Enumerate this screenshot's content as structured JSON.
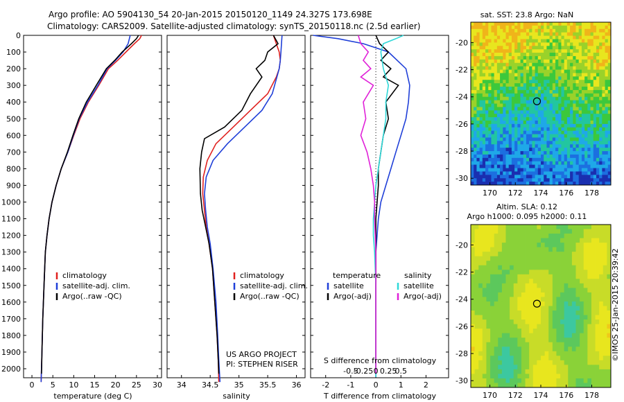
{
  "header": {
    "line1": "Argo profile: AO 5904130_54 20-Jan-2015 20150120_1149 24.327S 173.698E",
    "line2": "Climatology: CARS2009. Satellite-adjusted climatology: synTS_20150118.nc (2.5d earlier)"
  },
  "colors": {
    "climatology": "#e0201e",
    "satellite": "#1f3fd8",
    "argo": "#000000",
    "temp_diff_satellite": "#1f3fd8",
    "temp_diff_argo": "#000000",
    "sal_diff_satellite": "#2fd8d8",
    "sal_diff_argo": "#e020d8"
  },
  "chart_data": [
    {
      "type": "line",
      "name": "temperature-profile",
      "xlabel": "temperature (deg C)",
      "xlim": [
        -2,
        31
      ],
      "ylim": [
        2080,
        0
      ],
      "xticks": [
        0,
        5,
        10,
        15,
        20,
        25,
        30
      ],
      "yticks": [
        0,
        100,
        200,
        300,
        400,
        500,
        600,
        700,
        800,
        900,
        1000,
        1100,
        1200,
        1300,
        1400,
        1500,
        1600,
        1700,
        1800,
        1900,
        2000
      ],
      "legend": [
        "climatology",
        "satellite-adj. clim.",
        "Argo(..raw -QC)"
      ],
      "series": [
        {
          "name": "climatology",
          "color": "#e0201e",
          "x": [
            26.2,
            25.8,
            24.5,
            22.5,
            20.5,
            18.3,
            16.0,
            13.5,
            11.5,
            10.0,
            8.6,
            7.0,
            5.8,
            4.8,
            4.1,
            3.6,
            3.2,
            2.9,
            2.6,
            2.4,
            2.2
          ],
          "y": [
            0,
            20,
            50,
            100,
            150,
            200,
            300,
            400,
            500,
            600,
            700,
            800,
            900,
            1000,
            1100,
            1200,
            1300,
            1500,
            1700,
            1900,
            2080
          ]
        },
        {
          "name": "satellite-adj. clim.",
          "color": "#1f3fd8",
          "x": [
            23.5,
            23.3,
            23.0,
            21.8,
            20.0,
            18.0,
            15.8,
            13.3,
            11.3,
            9.9,
            8.6,
            7.0,
            5.8,
            4.8,
            4.1,
            3.6,
            3.2,
            2.9,
            2.6,
            2.4,
            2.2
          ],
          "y": [
            0,
            20,
            50,
            100,
            150,
            200,
            300,
            400,
            500,
            600,
            700,
            800,
            900,
            1000,
            1100,
            1200,
            1300,
            1500,
            1700,
            1900,
            2080
          ]
        },
        {
          "name": "Argo(..raw -QC)",
          "color": "#000000",
          "x": [
            25.5,
            25.0,
            23.8,
            21.6,
            19.8,
            17.8,
            15.4,
            13.0,
            11.2,
            9.8,
            8.5,
            7.0,
            5.8,
            4.8,
            4.1,
            3.6,
            3.2,
            2.9,
            2.6,
            2.4,
            2.3
          ],
          "y": [
            0,
            20,
            50,
            100,
            150,
            200,
            300,
            400,
            500,
            600,
            700,
            800,
            900,
            1000,
            1100,
            1200,
            1300,
            1500,
            1700,
            1900,
            2030
          ]
        }
      ]
    },
    {
      "type": "line",
      "name": "salinity-profile",
      "xlabel": "salinity",
      "xlim": [
        33.75,
        36.15
      ],
      "ylim": [
        2080,
        0
      ],
      "xticks": [
        34,
        34.5,
        35,
        35.5,
        36
      ],
      "legend": [
        "climatology",
        "satellite-adj. clim.",
        "Argo(..raw -QC)"
      ],
      "annotations": [
        "US ARGO PROJECT",
        "PI: STEPHEN RISER"
      ],
      "series": [
        {
          "name": "climatology",
          "color": "#e0201e",
          "x": [
            35.6,
            35.65,
            35.7,
            35.72,
            35.7,
            35.65,
            35.5,
            35.2,
            34.9,
            34.6,
            34.45,
            34.38,
            34.37,
            34.4,
            34.43,
            34.48,
            34.54,
            34.58,
            34.62,
            34.64,
            34.65
          ],
          "y": [
            0,
            50,
            100,
            150,
            200,
            250,
            350,
            450,
            550,
            650,
            750,
            850,
            950,
            1050,
            1150,
            1250,
            1400,
            1600,
            1800,
            1950,
            2080
          ]
        },
        {
          "name": "satellite-adj. clim.",
          "color": "#1f3fd8",
          "x": [
            35.75,
            35.74,
            35.73,
            35.72,
            35.7,
            35.66,
            35.58,
            35.4,
            35.1,
            34.8,
            34.55,
            34.43,
            34.4,
            34.42,
            34.45,
            34.5,
            34.55,
            34.6,
            34.63,
            34.65,
            34.67
          ],
          "y": [
            0,
            50,
            100,
            150,
            200,
            250,
            350,
            450,
            550,
            650,
            750,
            850,
            950,
            1050,
            1150,
            1250,
            1400,
            1600,
            1800,
            1950,
            2080
          ]
        },
        {
          "name": "Argo(..raw -QC)",
          "color": "#000000",
          "x": [
            35.6,
            35.68,
            35.5,
            35.45,
            35.3,
            35.4,
            35.2,
            35.05,
            34.75,
            34.4,
            34.35,
            34.32,
            34.33,
            34.36,
            34.42,
            34.48,
            34.54,
            34.58,
            34.62,
            34.64,
            34.65
          ],
          "y": [
            0,
            50,
            100,
            150,
            200,
            250,
            350,
            450,
            550,
            620,
            700,
            800,
            950,
            1050,
            1150,
            1250,
            1400,
            1600,
            1800,
            1950,
            2030
          ]
        }
      ]
    },
    {
      "type": "line",
      "name": "difference-profile",
      "xlabel": "T difference from climatology",
      "xlabel_top": "S difference from climatology",
      "xlim": [
        -2.6,
        2.9
      ],
      "ylim": [
        2080,
        0
      ],
      "xticks": [
        -2,
        -1,
        0,
        1,
        2
      ],
      "xticks_top_labels": [
        "-0.5",
        "-0.25",
        "0",
        "0.25",
        "0.5"
      ],
      "legend": {
        "temperature": {
          "heading": "temperature",
          "entries": [
            "satellite",
            "Argo(-adj)"
          ]
        },
        "salinity": {
          "heading": "salinity",
          "entries": [
            "satellite",
            "Argo(-adj)"
          ]
        }
      },
      "series": [
        {
          "name": "temperature satellite",
          "color": "#1f3fd8",
          "x": [
            -2.5,
            -1.5,
            -0.5,
            0.5,
            1.2,
            1.35,
            1.3,
            1.2,
            1.0,
            0.8,
            0.6,
            0.4,
            0.2,
            0.1,
            0.05,
            0.0,
            0.0,
            0.0,
            0.0
          ],
          "y": [
            0,
            20,
            50,
            100,
            200,
            300,
            400,
            500,
            600,
            700,
            800,
            900,
            1000,
            1100,
            1200,
            1300,
            1500,
            1800,
            2050
          ]
        },
        {
          "name": "temperature Argo(-adj)",
          "color": "#000000",
          "x": [
            0.0,
            0.15,
            0.5,
            0.2,
            0.6,
            0.3,
            0.9,
            0.4,
            0.5,
            0.3,
            0.2,
            0.1,
            0.1,
            0.05,
            0.0,
            0.0,
            0.0,
            0.0,
            0.0
          ],
          "y": [
            0,
            50,
            100,
            150,
            200,
            250,
            300,
            400,
            500,
            600,
            700,
            800,
            900,
            1000,
            1100,
            1300,
            1500,
            1800,
            2030
          ]
        },
        {
          "name": "salinity satellite",
          "color": "#2fd8d8",
          "x": [
            1.1,
            0.8,
            0.3,
            0.2,
            0.3,
            0.5,
            0.4,
            0.4,
            0.3,
            0.2,
            0.1,
            0.0,
            -0.05,
            -0.1,
            -0.1,
            -0.05,
            0.0,
            0.0,
            0.0
          ],
          "y": [
            0,
            20,
            50,
            100,
            200,
            300,
            400,
            500,
            600,
            700,
            800,
            900,
            1000,
            1100,
            1200,
            1300,
            1500,
            1800,
            2050
          ]
        },
        {
          "name": "salinity Argo(-adj)",
          "color": "#e020d8",
          "x": [
            -0.7,
            -0.6,
            -0.3,
            -0.5,
            -0.2,
            -0.6,
            -0.1,
            -0.5,
            -0.4,
            -0.6,
            -0.35,
            -0.2,
            -0.1,
            -0.05,
            -0.05,
            0.0,
            0.0,
            0.0,
            0.0
          ],
          "y": [
            0,
            50,
            100,
            150,
            200,
            250,
            300,
            400,
            500,
            600,
            700,
            800,
            900,
            1000,
            1100,
            1300,
            1500,
            1800,
            2030
          ]
        }
      ]
    },
    {
      "type": "heatmap",
      "name": "sst-map",
      "title": "sat. SST: 23.8 Argo: NaN",
      "xlim": [
        168.5,
        179.5
      ],
      "ylim": [
        -30.5,
        -18.5
      ],
      "xticks": [
        170,
        172,
        174,
        176,
        178
      ],
      "yticks": [
        -20,
        -22,
        -24,
        -26,
        -28,
        -30
      ],
      "marker": {
        "lon": 173.698,
        "lat": -24.327
      }
    },
    {
      "type": "heatmap",
      "name": "sla-map",
      "title": "Altim. SLA: 0.12",
      "subtitle": "Argo h1000: 0.095 h2000: 0.11",
      "xlim": [
        168.5,
        179.5
      ],
      "ylim": [
        -30.5,
        -18.5
      ],
      "xticks": [
        170,
        172,
        174,
        176,
        178
      ],
      "yticks": [
        -20,
        -22,
        -24,
        -26,
        -28,
        -30
      ],
      "marker": {
        "lon": 173.698,
        "lat": -24.327
      },
      "side_label": "©IMOS 25-Jan-2015 20:39:42"
    }
  ]
}
